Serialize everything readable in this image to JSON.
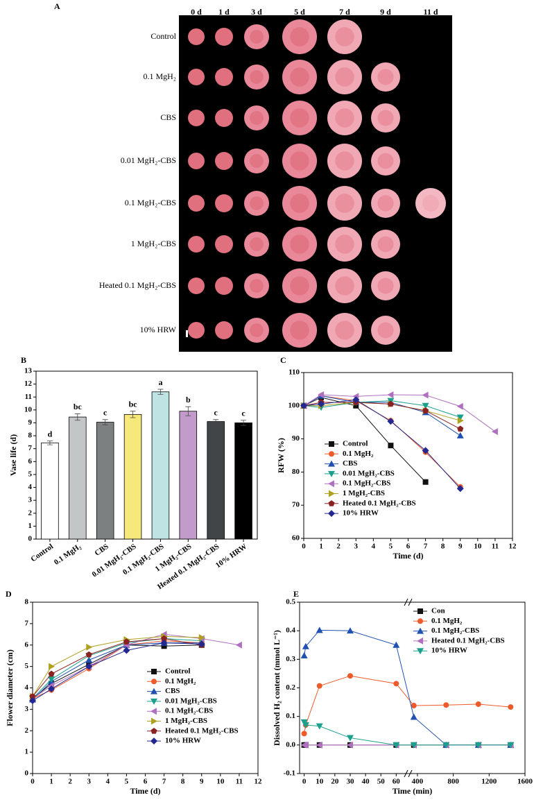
{
  "photo_panel": {
    "label": "A",
    "days": [
      "0 d",
      "1 d",
      "3 d",
      "5 d",
      "7 d",
      "9 d",
      "11 d"
    ],
    "treatments": [
      "Control",
      "0.1 MgH₂",
      "CBS",
      "0.01 MgH₂-CBS",
      "0.1 MgH₂-CBS",
      "1 MgH₂-CBS",
      "Heated 0.1 MgH₂-CBS",
      "10% HRW"
    ]
  },
  "chart_data": [
    {
      "type": "bar",
      "panel_label": "B",
      "y_label": "Vase life (d)",
      "categories": [
        "Control",
        "0.1 MgH₂",
        "CBS",
        "0.01 MgH₂-CBS",
        "0.1 MgH₂-CBS",
        "1 MgH₂-CBS",
        "Heated 0.1 MgH₂-CBS",
        "10% HRW"
      ],
      "values": [
        7.45,
        9.45,
        9.05,
        9.65,
        11.4,
        9.9,
        9.1,
        9.0
      ],
      "errors": [
        0.15,
        0.25,
        0.2,
        0.25,
        0.2,
        0.35,
        0.15,
        0.2
      ],
      "annotations": [
        "d",
        "bc",
        "c",
        "bc",
        "a",
        "b",
        "c",
        "c"
      ],
      "colors": [
        "#ffffff",
        "#c2c6c6",
        "#7c8080",
        "#f6e87a",
        "#bfe3e3",
        "#c29bcb",
        "#414548",
        "#000000"
      ],
      "ylim": [
        0,
        13
      ],
      "yticks": [
        0,
        1,
        2,
        3,
        4,
        5,
        6,
        7,
        8,
        9,
        10,
        11,
        12,
        13
      ]
    },
    {
      "type": "line",
      "panel_label": "C",
      "x_label": "Time (d)",
      "y_label": "RFW (%)",
      "x": [
        0,
        1,
        3,
        5,
        7,
        9,
        11
      ],
      "xlim": [
        0,
        12
      ],
      "xticks": [
        0,
        1,
        2,
        3,
        4,
        5,
        6,
        7,
        8,
        9,
        10,
        11,
        12
      ],
      "ylim": [
        60,
        110
      ],
      "yticks": [
        60,
        70,
        80,
        90,
        100,
        110
      ],
      "legend": "lower left",
      "series": [
        {
          "name": "Control",
          "color": "#111111",
          "marker": "square",
          "values": [
            100,
            102.5,
            100,
            88,
            77,
            null,
            null
          ]
        },
        {
          "name": "0.1 MgH₂",
          "color": "#ee5a2a",
          "marker": "circle",
          "values": [
            100,
            103,
            101.5,
            95.5,
            86,
            75.5,
            null
          ]
        },
        {
          "name": "CBS",
          "color": "#2050b0",
          "marker": "triangle-up",
          "values": [
            100,
            103,
            101,
            101,
            98,
            91,
            null
          ]
        },
        {
          "name": "0.01 MgH₂-CBS",
          "color": "#1aa08c",
          "marker": "triangle-down",
          "values": [
            100,
            99.5,
            101,
            101.5,
            100,
            96.5,
            null
          ]
        },
        {
          "name": "0.1 MgH₂-CBS",
          "color": "#b070c0",
          "marker": "triangle-left",
          "values": [
            100,
            103.3,
            102.8,
            103.3,
            103.2,
            99.8,
            92.2
          ]
        },
        {
          "name": "1 MgH₂-CBS",
          "color": "#b0a020",
          "marker": "triangle-right",
          "values": [
            100,
            100,
            101,
            100.5,
            98.5,
            95.5,
            null
          ]
        },
        {
          "name": "Heated 0.1 MgH₂-CBS",
          "color": "#8b2222",
          "marker": "pentagon",
          "values": [
            100,
            101,
            101,
            100.5,
            98.5,
            93,
            null
          ]
        },
        {
          "name": "10% HRW",
          "color": "#22288f",
          "marker": "diamond",
          "values": [
            100,
            100.5,
            101.8,
            95.3,
            86.5,
            75,
            null
          ]
        }
      ]
    },
    {
      "type": "line",
      "panel_label": "D",
      "x_label": "Time (d)",
      "y_label": "Flower diameter (cm)",
      "x": [
        0,
        1,
        3,
        5,
        7,
        9,
        11
      ],
      "xlim": [
        0,
        12
      ],
      "xticks": [
        0,
        1,
        2,
        3,
        4,
        5,
        6,
        7,
        8,
        9,
        10,
        11,
        12
      ],
      "ylim": [
        0,
        8
      ],
      "yticks": [
        0,
        1,
        2,
        3,
        4,
        5,
        6,
        7,
        8
      ],
      "legend": "lower right",
      "series": [
        {
          "name": "Control",
          "color": "#111111",
          "marker": "square",
          "values": [
            3.5,
            4.2,
            5.1,
            6.0,
            5.95,
            6.0,
            null
          ]
        },
        {
          "name": "0.1 MgH₂",
          "color": "#ee5a2a",
          "marker": "circle",
          "values": [
            3.5,
            3.9,
            4.9,
            6.0,
            6.2,
            6.1,
            null
          ]
        },
        {
          "name": "CBS",
          "color": "#2050b0",
          "marker": "triangle-up",
          "values": [
            3.45,
            4.3,
            5.3,
            6.0,
            6.1,
            6.1,
            null
          ]
        },
        {
          "name": "0.01 MgH₂-CBS",
          "color": "#1aa08c",
          "marker": "triangle-down",
          "values": [
            3.5,
            4.4,
            5.5,
            6.1,
            6.3,
            6.2,
            null
          ]
        },
        {
          "name": "0.1 MgH₂-CBS",
          "color": "#b070c0",
          "marker": "triangle-left",
          "values": [
            3.5,
            4.1,
            5.0,
            6.0,
            6.5,
            6.3,
            6.0
          ]
        },
        {
          "name": "1 MgH₂-CBS",
          "color": "#b0a020",
          "marker": "triangle-right",
          "values": [
            3.6,
            5.0,
            5.9,
            6.25,
            6.4,
            6.35,
            null
          ]
        },
        {
          "name": "Heated 0.1 MgH₂-CBS",
          "color": "#8b2222",
          "marker": "pentagon",
          "values": [
            3.6,
            4.65,
            5.55,
            6.15,
            6.3,
            6.0,
            null
          ]
        },
        {
          "name": "10% HRW",
          "color": "#22288f",
          "marker": "diamond",
          "values": [
            3.4,
            3.95,
            5.0,
            5.75,
            6.1,
            6.05,
            null
          ]
        }
      ]
    },
    {
      "type": "line",
      "panel_label": "E",
      "x_label": "Time (min)",
      "y_label": "Dissolved H₂ content (mmol L⁻¹)",
      "x": [
        0,
        1,
        10,
        30,
        60,
        360,
        720,
        1080,
        1440
      ],
      "xlim": [
        -3,
        1600
      ],
      "xbreak": [
        68,
        300
      ],
      "xticks": [
        0,
        10,
        20,
        30,
        40,
        50,
        60,
        400,
        800,
        1200,
        1600
      ],
      "ylim": [
        -0.1,
        0.5
      ],
      "yticks": [
        -0.1,
        {
          "value": 0,
          "label": "0.0"
        },
        0.1,
        0.2,
        0.3,
        0.4,
        0.5
      ],
      "legend": "upper right",
      "series": [
        {
          "name": "Con",
          "color": "#111111",
          "marker": "square",
          "values": [
            0,
            0,
            0,
            0,
            0,
            0,
            0,
            0,
            0
          ]
        },
        {
          "name": "0.1 MgH₂",
          "color": "#ee5a2a",
          "marker": "circle",
          "values": [
            0.04,
            0.07,
            0.207,
            0.242,
            0.215,
            0.138,
            0.14,
            0.143,
            0.133
          ]
        },
        {
          "name": "0.1 MgH₂-CBS",
          "color": "#2050b0",
          "marker": "triangle-up",
          "values": [
            0.313,
            0.345,
            0.402,
            0.4,
            0.35,
            0.098,
            0,
            0,
            0
          ]
        },
        {
          "name": "Heated 0.1 MgH₂-CBS",
          "color": "#b070c0",
          "marker": "triangle-left",
          "values": [
            0,
            0,
            0,
            0,
            0,
            0,
            0,
            0,
            0
          ]
        },
        {
          "name": "10% HRW",
          "color": "#1aa08c",
          "marker": "triangle-down",
          "values": [
            0.08,
            0.07,
            0.066,
            0.025,
            0,
            0,
            0,
            0,
            0
          ]
        }
      ]
    }
  ]
}
